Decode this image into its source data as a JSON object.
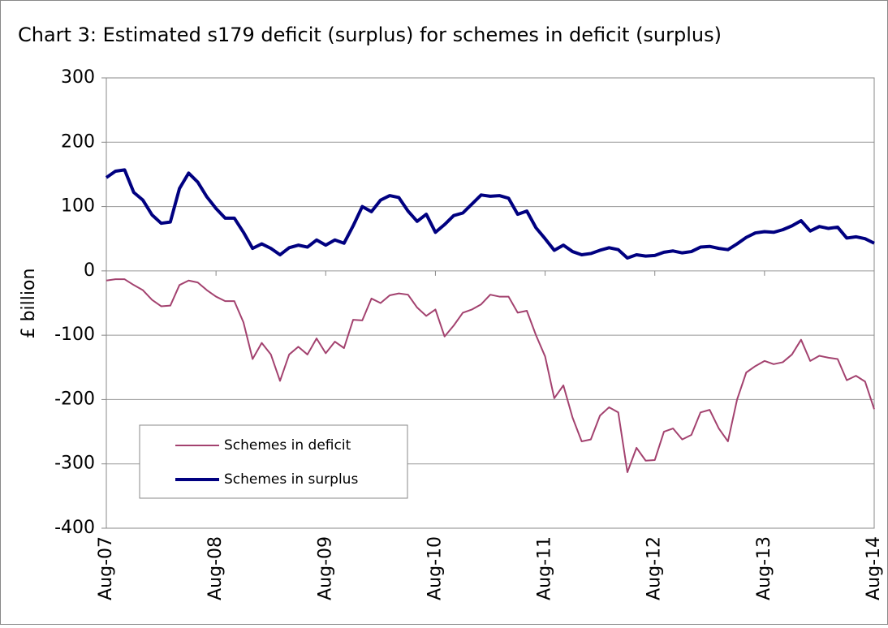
{
  "chart_data": {
    "type": "line",
    "title": "Chart 3: Estimated s179 deficit (surplus) for schemes in deficit (surplus)",
    "y_label": "£ billion",
    "categories": [
      "Aug-07",
      null,
      null,
      null,
      null,
      null,
      null,
      null,
      null,
      null,
      null,
      null,
      "Aug-08",
      null,
      null,
      null,
      null,
      null,
      null,
      null,
      null,
      null,
      null,
      null,
      "Aug-09",
      null,
      null,
      null,
      null,
      null,
      null,
      null,
      null,
      null,
      null,
      null,
      "Aug-10",
      null,
      null,
      null,
      null,
      null,
      null,
      null,
      null,
      null,
      null,
      null,
      "Aug-11",
      null,
      null,
      null,
      null,
      null,
      null,
      null,
      null,
      null,
      null,
      null,
      "Aug-12",
      null,
      null,
      null,
      null,
      null,
      null,
      null,
      null,
      null,
      null,
      null,
      "Aug-13",
      null,
      null,
      null,
      null,
      null,
      null,
      null,
      null,
      null,
      null,
      null,
      "Aug-14"
    ],
    "series": [
      {
        "name": "Schemes in deficit",
        "color": "#a3426f",
        "width": 2,
        "values": [
          -15,
          -13,
          -13,
          -22,
          -30,
          -45,
          -55,
          -54,
          -22,
          -15,
          -18,
          -30,
          -40,
          -47,
          -47,
          -80,
          -137,
          -112,
          -130,
          -171,
          -130,
          -118,
          -130,
          -105,
          -128,
          -110,
          -120,
          -76,
          -77,
          -43,
          -50,
          -38,
          -35,
          -37,
          -57,
          -70,
          -60,
          -102,
          -85,
          -65,
          -60,
          -52,
          -37,
          -40,
          -40,
          -65,
          -62,
          -100,
          -133,
          -198,
          -178,
          -228,
          -265,
          -262,
          -225,
          -212,
          -220,
          -313,
          -275,
          -295,
          -294,
          -250,
          -245,
          -262,
          -255,
          -220,
          -216,
          -245,
          -265,
          -200,
          -158,
          -148,
          -140,
          -145,
          -142,
          -130,
          -107,
          -140,
          -132,
          -135,
          -137,
          -170,
          -163,
          -172,
          -215
        ]
      },
      {
        "name": "Schemes in surplus",
        "color": "#000080",
        "width": 4,
        "values": [
          145,
          155,
          157,
          122,
          110,
          87,
          74,
          76,
          128,
          152,
          138,
          115,
          97,
          82,
          82,
          60,
          35,
          42,
          35,
          25,
          36,
          40,
          37,
          48,
          40,
          48,
          43,
          70,
          100,
          92,
          110,
          117,
          114,
          93,
          77,
          88,
          60,
          72,
          86,
          90,
          104,
          118,
          116,
          117,
          113,
          88,
          93,
          67,
          50,
          32,
          40,
          30,
          25,
          27,
          32,
          36,
          33,
          20,
          25,
          23,
          24,
          29,
          31,
          28,
          30,
          37,
          38,
          35,
          33,
          42,
          52,
          59,
          61,
          60,
          64,
          70,
          78,
          62,
          69,
          66,
          68,
          51,
          53,
          50,
          43
        ]
      }
    ],
    "ylim": [
      -400,
      300
    ],
    "yticks": [
      -400,
      -300,
      -200,
      -100,
      0,
      100,
      200,
      300
    ],
    "grid": true
  }
}
